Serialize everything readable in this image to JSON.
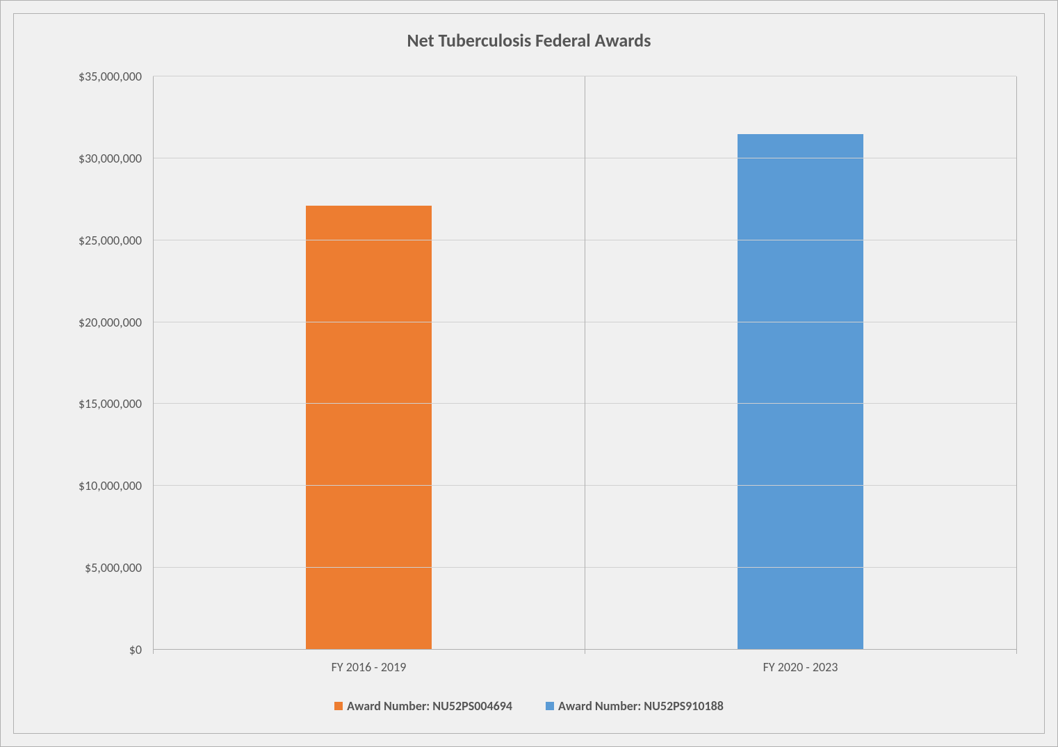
{
  "chart": {
    "type": "bar",
    "title": "Net Tuberculosis Federal Awards",
    "title_fontsize": 26,
    "title_color": "#555555",
    "background_color": "#f0f0f0",
    "border_color": "#b0b0b0",
    "grid_color": "#d0d0d0",
    "axis_color": "#b0b0b0",
    "text_color": "#555555",
    "label_fontsize": 18,
    "ymin": 0,
    "ymax": 35000000,
    "ytick_step": 5000000,
    "yticks": [
      {
        "value": 0,
        "label": "$0"
      },
      {
        "value": 5000000,
        "label": "$5,000,000"
      },
      {
        "value": 10000000,
        "label": "$10,000,000"
      },
      {
        "value": 15000000,
        "label": "$15,000,000"
      },
      {
        "value": 20000000,
        "label": "$20,000,000"
      },
      {
        "value": 25000000,
        "label": "$25,000,000"
      },
      {
        "value": 30000000,
        "label": "$30,000,000"
      },
      {
        "value": 35000000,
        "label": "$35,000,000"
      }
    ],
    "categories": [
      {
        "label": "FY 2016 - 2019",
        "value": 27100000,
        "color": "#ed7d31"
      },
      {
        "label": "FY 2020 - 2023",
        "value": 31500000,
        "color": "#5b9bd5"
      }
    ],
    "bar_width_pct": 29,
    "legend": [
      {
        "label": "Award Number: NU52PS004694",
        "color": "#ed7d31"
      },
      {
        "label": "Award Number: NU52PS910188",
        "color": "#5b9bd5"
      }
    ]
  }
}
